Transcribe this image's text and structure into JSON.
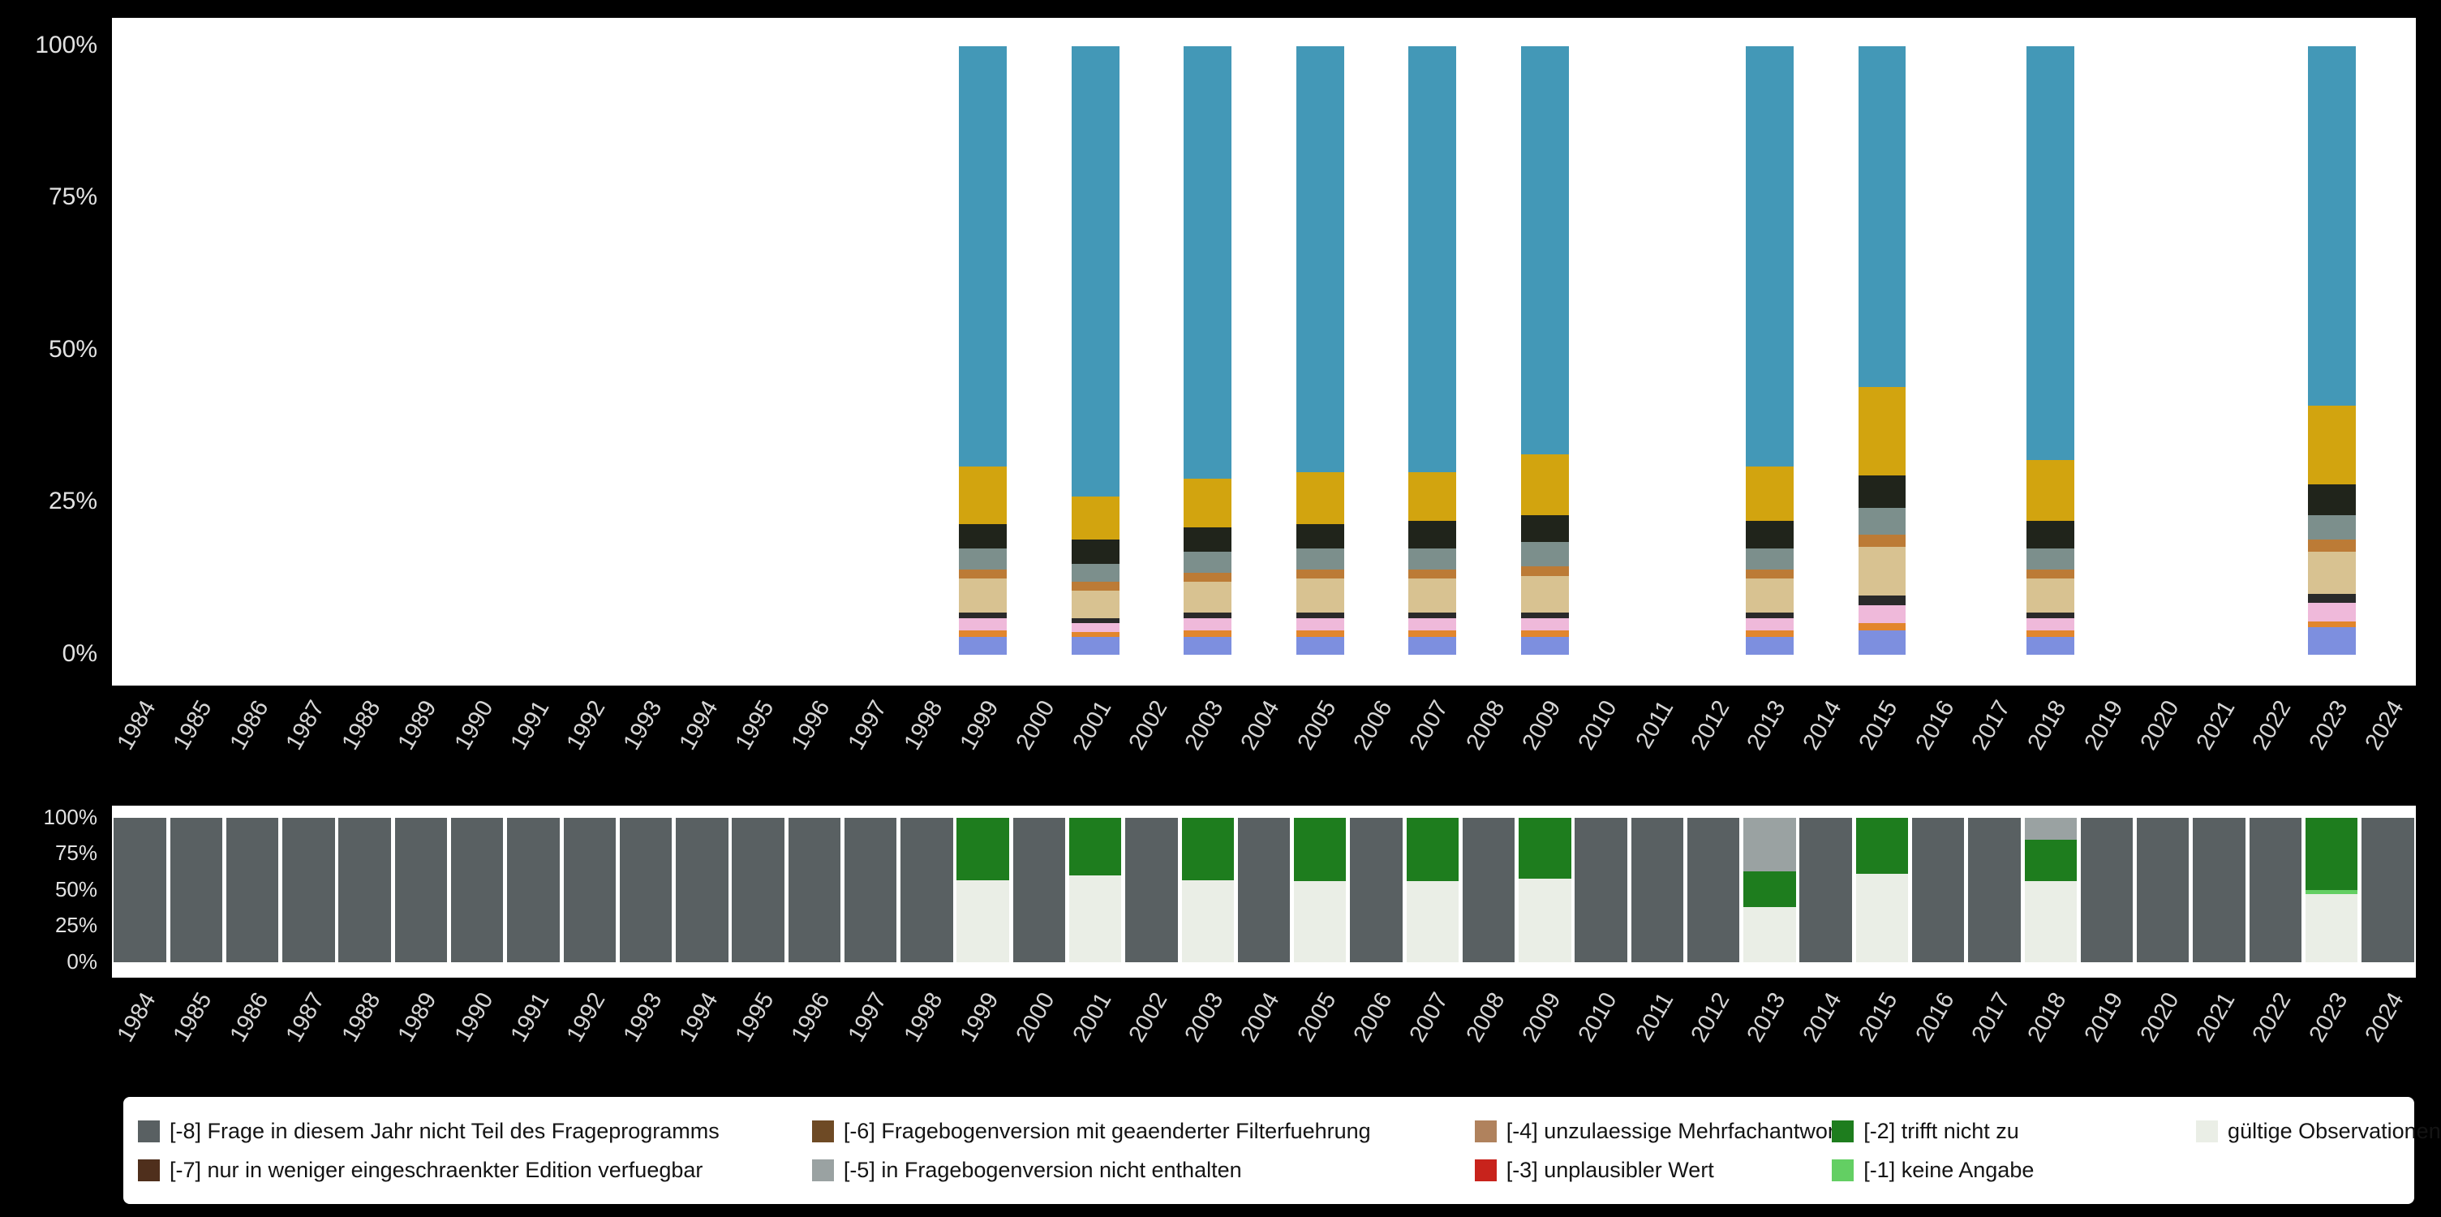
{
  "colors": {
    "background": "#000000",
    "panel": "#ffffff",
    "axis_text": "#d6d6d6"
  },
  "chart_data": [
    {
      "name": "answer-distribution",
      "type": "bar",
      "stacked": true,
      "grid": false,
      "ylim": [
        0,
        100
      ],
      "yticks": [
        {
          "label": "100%",
          "value": 100
        },
        {
          "label": "75%",
          "value": 75
        },
        {
          "label": "50%",
          "value": 50
        },
        {
          "label": "25%",
          "value": 25
        },
        {
          "label": "0%",
          "value": 0
        }
      ],
      "years": [
        1984,
        1985,
        1986,
        1987,
        1988,
        1989,
        1990,
        1991,
        1992,
        1993,
        1994,
        1995,
        1996,
        1997,
        1998,
        1999,
        2000,
        2001,
        2002,
        2003,
        2004,
        2005,
        2006,
        2007,
        2008,
        2009,
        2010,
        2011,
        2012,
        2013,
        2014,
        2015,
        2016,
        2017,
        2018,
        2019,
        2020,
        2021,
        2022,
        2023,
        2024
      ],
      "categories": [
        {
          "name": "category-1",
          "color": "#7d8fdf"
        },
        {
          "name": "category-2",
          "color": "#e2862d"
        },
        {
          "name": "category-3",
          "color": "#efb9da"
        },
        {
          "name": "category-4",
          "color": "#2a2a2a"
        },
        {
          "name": "category-5",
          "color": "#d8c291"
        },
        {
          "name": "category-6",
          "color": "#bc7b36"
        },
        {
          "name": "category-7",
          "color": "#7c8f8c"
        },
        {
          "name": "category-8",
          "color": "#20241b"
        },
        {
          "name": "category-9",
          "color": "#d2a40f"
        },
        {
          "name": "category-10",
          "color": "#4398b7"
        }
      ],
      "bars": {
        "1999": [
          3,
          1,
          2,
          1,
          5.5,
          1.5,
          3.5,
          4,
          9.5,
          69
        ],
        "2001": [
          3,
          0.7,
          1.5,
          0.8,
          4.5,
          1.5,
          3,
          4,
          7,
          74
        ],
        "2003": [
          3,
          1,
          2,
          1,
          5,
          1.5,
          3.5,
          4,
          8,
          71
        ],
        "2005": [
          3,
          1,
          2,
          1,
          5.5,
          1.5,
          3.5,
          4,
          8.5,
          70
        ],
        "2007": [
          3,
          1,
          2,
          1,
          5.5,
          1.5,
          3.5,
          4.5,
          8,
          70
        ],
        "2009": [
          3,
          1,
          2,
          1,
          6,
          1.5,
          4,
          4.5,
          10,
          67
        ],
        "2013": [
          3,
          1,
          2,
          1,
          5.5,
          1.5,
          3.5,
          4.5,
          9,
          69
        ],
        "2015": [
          4,
          1.2,
          3,
          1.5,
          8,
          2,
          4.5,
          5.3,
          14.5,
          56
        ],
        "2018": [
          3,
          1,
          2,
          1,
          5.5,
          1.5,
          3.5,
          4.5,
          10,
          68
        ],
        "2023": [
          4.5,
          1,
          3,
          1.5,
          7,
          2,
          4,
          5,
          13,
          59
        ]
      }
    },
    {
      "name": "missing-codes-overview",
      "type": "bar",
      "stacked": true,
      "grid": false,
      "ylim": [
        0,
        100
      ],
      "yticks": [
        {
          "label": "100%",
          "value": 100
        },
        {
          "label": "75%",
          "value": 75
        },
        {
          "label": "50%",
          "value": 50
        },
        {
          "label": "25%",
          "value": 25
        },
        {
          "label": "0%",
          "value": 0
        }
      ],
      "years": [
        1984,
        1985,
        1986,
        1987,
        1988,
        1989,
        1990,
        1991,
        1992,
        1993,
        1994,
        1995,
        1996,
        1997,
        1998,
        1999,
        2000,
        2001,
        2002,
        2003,
        2004,
        2005,
        2006,
        2007,
        2008,
        2009,
        2010,
        2011,
        2012,
        2013,
        2014,
        2015,
        2016,
        2017,
        2018,
        2019,
        2020,
        2021,
        2022,
        2023,
        2024
      ],
      "categories": [
        {
          "name": "gueltige-observationen",
          "color": "#eaeee6"
        },
        {
          "name": "minus1-keine-angabe",
          "color": "#63cf63"
        },
        {
          "name": "minus2-trifft-nicht-zu",
          "color": "#1e7d1e"
        },
        {
          "name": "minus5-nicht-enthalten",
          "color": "#9aa2a2"
        },
        {
          "name": "minus8-nicht-teil-frageprogramm",
          "color": "#596062"
        }
      ],
      "bars": {
        "1984": [
          0,
          0,
          0,
          0,
          100
        ],
        "1985": [
          0,
          0,
          0,
          0,
          100
        ],
        "1986": [
          0,
          0,
          0,
          0,
          100
        ],
        "1987": [
          0,
          0,
          0,
          0,
          100
        ],
        "1988": [
          0,
          0,
          0,
          0,
          100
        ],
        "1989": [
          0,
          0,
          0,
          0,
          100
        ],
        "1990": [
          0,
          0,
          0,
          0,
          100
        ],
        "1991": [
          0,
          0,
          0,
          0,
          100
        ],
        "1992": [
          0,
          0,
          0,
          0,
          100
        ],
        "1993": [
          0,
          0,
          0,
          0,
          100
        ],
        "1994": [
          0,
          0,
          0,
          0,
          100
        ],
        "1995": [
          0,
          0,
          0,
          0,
          100
        ],
        "1996": [
          0,
          0,
          0,
          0,
          100
        ],
        "1997": [
          0,
          0,
          0,
          0,
          100
        ],
        "1998": [
          0,
          0,
          0,
          0,
          100
        ],
        "1999": [
          57,
          0,
          43,
          0,
          0
        ],
        "2000": [
          0,
          0,
          0,
          0,
          100
        ],
        "2001": [
          60,
          0,
          40,
          0,
          0
        ],
        "2002": [
          0,
          0,
          0,
          0,
          100
        ],
        "2003": [
          57,
          0,
          43,
          0,
          0
        ],
        "2004": [
          0,
          0,
          0,
          0,
          100
        ],
        "2005": [
          56,
          0,
          44,
          0,
          0
        ],
        "2006": [
          0,
          0,
          0,
          0,
          100
        ],
        "2007": [
          56,
          0,
          44,
          0,
          0
        ],
        "2008": [
          0,
          0,
          0,
          0,
          100
        ],
        "2009": [
          58,
          0,
          42,
          0,
          0
        ],
        "2010": [
          0,
          0,
          0,
          0,
          100
        ],
        "2011": [
          0,
          0,
          0,
          0,
          100
        ],
        "2012": [
          0,
          0,
          0,
          0,
          100
        ],
        "2013": [
          38,
          0,
          25,
          37,
          0
        ],
        "2014": [
          0,
          0,
          0,
          0,
          100
        ],
        "2015": [
          61,
          0,
          39,
          0,
          0
        ],
        "2016": [
          0,
          0,
          0,
          0,
          100
        ],
        "2017": [
          0,
          0,
          0,
          0,
          100
        ],
        "2018": [
          56,
          0,
          29,
          15,
          0
        ],
        "2019": [
          0,
          0,
          0,
          0,
          100
        ],
        "2020": [
          0,
          0,
          0,
          0,
          100
        ],
        "2021": [
          0,
          0,
          0,
          0,
          100
        ],
        "2022": [
          0,
          0,
          0,
          0,
          100
        ],
        "2023": [
          47,
          3,
          50,
          0,
          0
        ],
        "2024": [
          0,
          0,
          0,
          0,
          100
        ]
      }
    }
  ],
  "legend": {
    "items": [
      {
        "label": "[-8] Frage in diesem Jahr nicht Teil des Frageprogramms",
        "color": "#596062"
      },
      {
        "label": "[-7] nur in weniger eingeschraenkter Edition verfuegbar",
        "color": "#4f2f1c"
      },
      {
        "label": "[-6] Fragebogenversion mit geaenderter Filterfuehrung",
        "color": "#6e4a25"
      },
      {
        "label": "[-5] in Fragebogenversion nicht enthalten",
        "color": "#9aa2a2"
      },
      {
        "label": "[-4] unzulaessige Mehrfachantwort",
        "color": "#b0825d"
      },
      {
        "label": "[-3] unplausibler Wert",
        "color": "#c8231c"
      },
      {
        "label": "[-2] trifft nicht zu",
        "color": "#1e7d1e"
      },
      {
        "label": "[-1] keine Angabe",
        "color": "#63cf63"
      },
      {
        "label": "gültige Observationen",
        "color": "#eaeee6"
      }
    ]
  }
}
